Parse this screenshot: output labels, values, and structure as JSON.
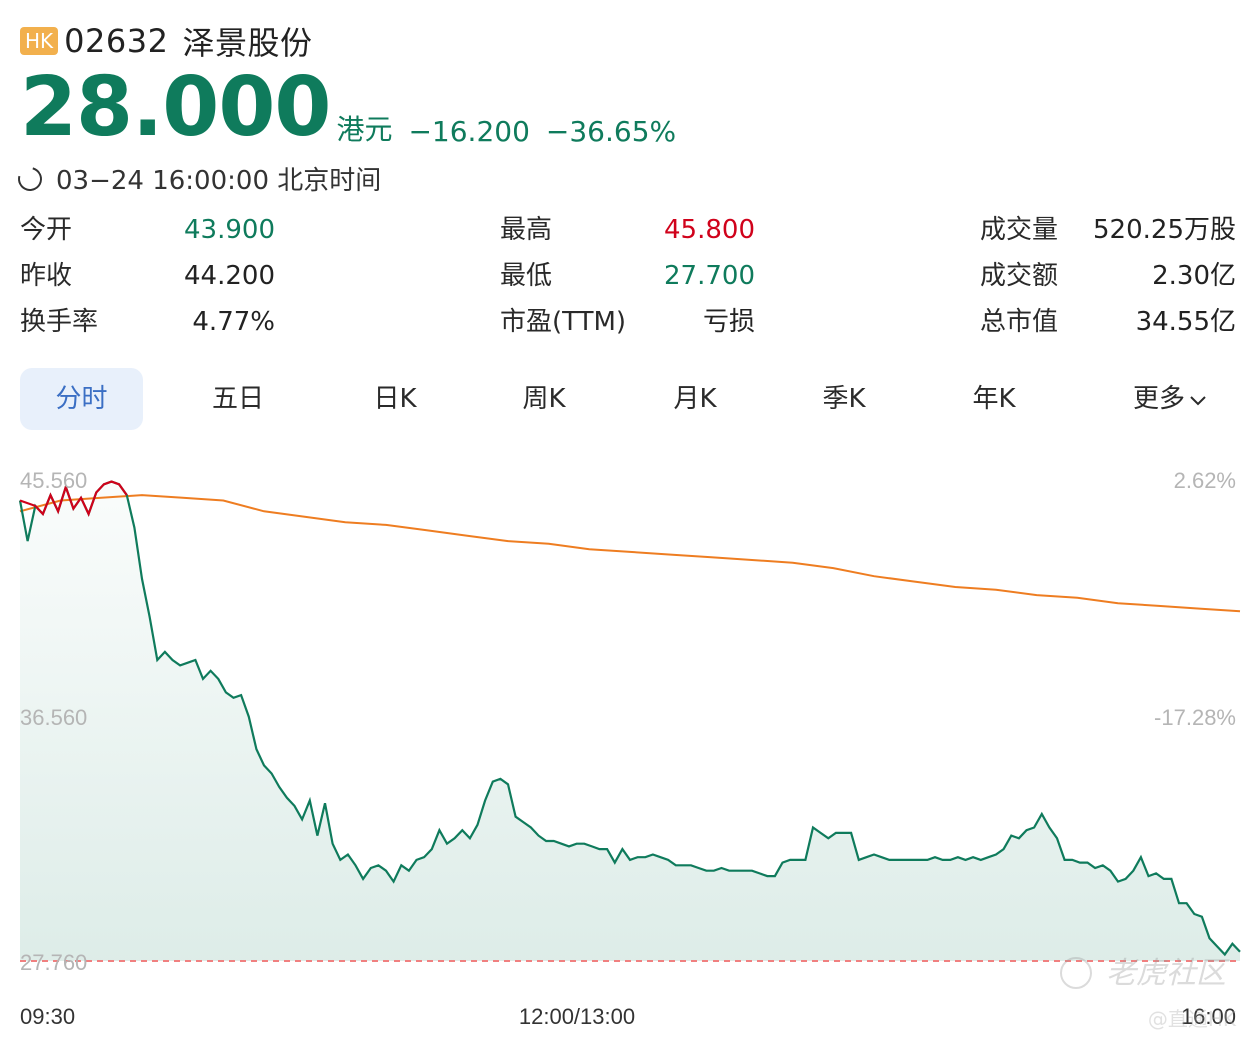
{
  "header": {
    "market_badge": "HK",
    "code": "02632",
    "name": "泽景股份"
  },
  "quote": {
    "price": "28.000",
    "currency": "港元",
    "change": "−16.200",
    "change_pct": "−36.65%",
    "timestamp": "03−24 16:00:00 北京时间"
  },
  "stats": [
    {
      "label": "今开",
      "value": "43.900",
      "color": "green"
    },
    {
      "label": "昨收",
      "value": "44.200",
      "color": "black"
    },
    {
      "label": "换手率",
      "value": "4.77%",
      "color": "black"
    },
    {
      "label": "最高",
      "value": "45.800",
      "color": "red"
    },
    {
      "label": "最低",
      "value": "27.700",
      "color": "green"
    },
    {
      "label": "市盈(TTM)",
      "value": "亏损",
      "color": "black"
    },
    {
      "label": "成交量",
      "value": "520.25万股",
      "color": "black"
    },
    {
      "label": "成交额",
      "value": "2.30亿",
      "color": "black"
    },
    {
      "label": "总市值",
      "value": "34.55亿",
      "color": "black"
    }
  ],
  "tabs": [
    "分时",
    "五日",
    "日K",
    "周K",
    "月K",
    "季K",
    "年K",
    "更多"
  ],
  "active_tab": "分时",
  "chart_data": {
    "type": "line",
    "y_left_ticks": [
      "45.560",
      "36.560",
      "27.760"
    ],
    "y_right_ticks": [
      "2.62%",
      "-17.28%"
    ],
    "x_ticks": [
      "09:30",
      "12:00/13:00",
      "16:00"
    ],
    "ylim": [
      27.76,
      45.56
    ],
    "prev_close": 44.2,
    "reference_line": 27.76,
    "colors": {
      "price": "#0f7b5c",
      "avg": "#ee7d21",
      "above_close": "#d0021b",
      "fill": "#0f7b5c",
      "ref": "#f08080"
    },
    "series": [
      {
        "name": "price",
        "values": [
          44.8,
          43.3,
          44.6,
          44.3,
          45.0,
          44.4,
          45.3,
          44.5,
          44.9,
          44.3,
          45.1,
          45.4,
          45.5,
          45.4,
          45.0,
          43.8,
          41.9,
          40.5,
          38.9,
          39.2,
          38.9,
          38.7,
          38.8,
          38.9,
          38.2,
          38.5,
          38.2,
          37.7,
          37.5,
          37.6,
          36.8,
          35.6,
          35.0,
          34.7,
          34.2,
          33.8,
          33.5,
          33.0,
          33.7,
          32.4,
          33.6,
          32.1,
          31.5,
          31.7,
          31.3,
          30.8,
          31.2,
          31.3,
          31.1,
          30.7,
          31.3,
          31.1,
          31.5,
          31.6,
          31.9,
          32.6,
          32.1,
          32.3,
          32.6,
          32.3,
          32.8,
          33.7,
          34.4,
          34.5,
          34.3,
          33.1,
          32.9,
          32.7,
          32.4,
          32.2,
          32.2,
          32.1,
          32.0,
          32.1,
          32.1,
          32.0,
          31.9,
          31.9,
          31.4,
          31.9,
          31.5,
          31.6,
          31.6,
          31.7,
          31.6,
          31.5,
          31.3,
          31.3,
          31.3,
          31.2,
          31.1,
          31.1,
          31.2,
          31.1,
          31.1,
          31.1,
          31.1,
          31.0,
          30.9,
          30.9,
          31.4,
          31.5,
          31.5,
          31.5,
          32.7,
          32.5,
          32.3,
          32.5,
          32.5,
          32.5,
          31.5,
          31.6,
          31.7,
          31.6,
          31.5,
          31.5,
          31.5,
          31.5,
          31.5,
          31.5,
          31.6,
          31.5,
          31.5,
          31.6,
          31.5,
          31.6,
          31.5,
          31.6,
          31.7,
          31.9,
          32.4,
          32.3,
          32.6,
          32.7,
          33.2,
          32.7,
          32.3,
          31.5,
          31.5,
          31.4,
          31.4,
          31.2,
          31.3,
          31.1,
          30.7,
          30.8,
          31.1,
          31.6,
          30.9,
          31.0,
          30.8,
          30.8,
          29.9,
          29.9,
          29.5,
          29.4,
          28.6,
          28.3,
          28.0,
          28.4,
          28.1
        ]
      },
      {
        "name": "avg",
        "values": [
          44.4,
          44.8,
          44.9,
          45.0,
          44.9,
          44.8,
          44.4,
          44.2,
          44.0,
          43.9,
          43.7,
          43.5,
          43.3,
          43.2,
          43.0,
          42.9,
          42.8,
          42.7,
          42.6,
          42.5,
          42.3,
          42.0,
          41.8,
          41.6,
          41.5,
          41.3,
          41.2,
          41.0,
          40.9,
          40.8,
          40.7
        ]
      }
    ]
  },
  "watermark": {
    "logo": "老虎社区",
    "handle": "@直通HK"
  }
}
